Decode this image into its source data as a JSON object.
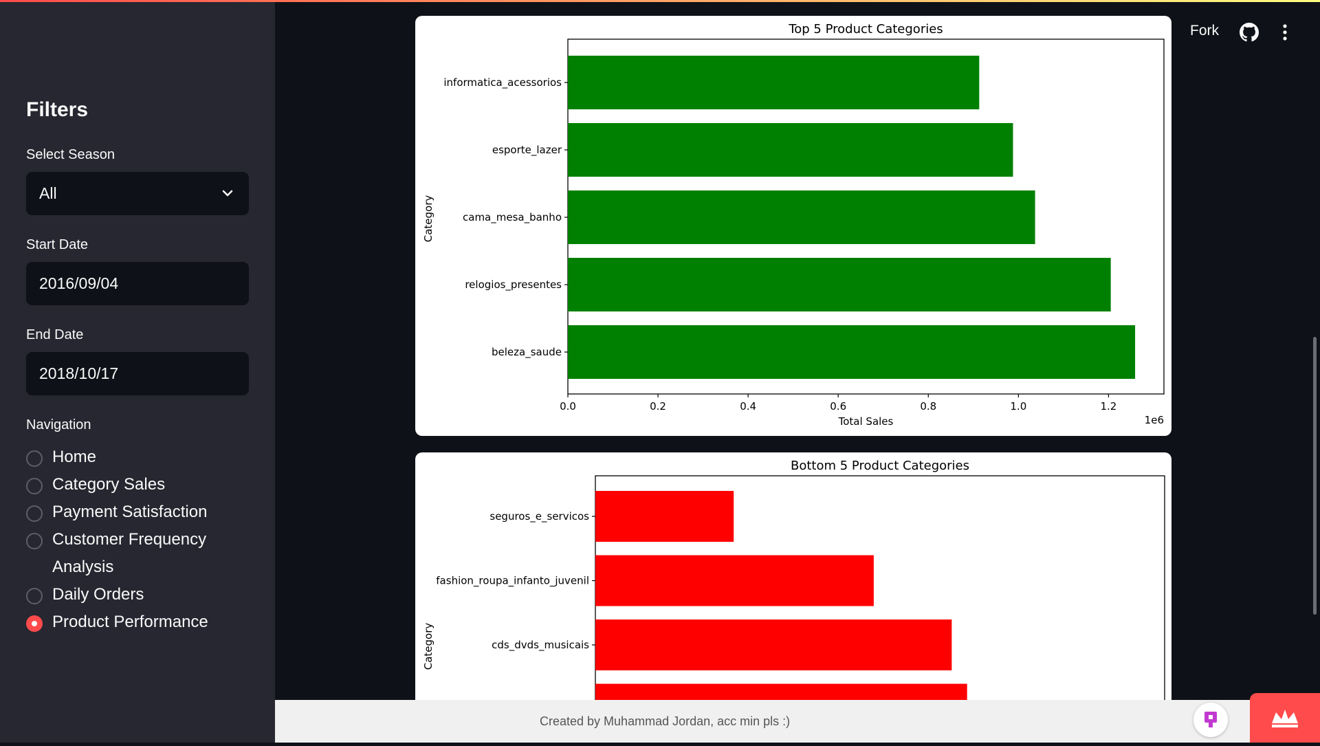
{
  "sidebar": {
    "title": "Filters",
    "season": {
      "label": "Select Season",
      "value": "All"
    },
    "start_date": {
      "label": "Start Date",
      "value": "2016/09/04"
    },
    "end_date": {
      "label": "End Date",
      "value": "2018/10/17"
    },
    "nav_label": "Navigation",
    "nav_items": [
      {
        "label": "Home",
        "selected": false
      },
      {
        "label": "Category Sales",
        "selected": false
      },
      {
        "label": "Payment Satisfaction",
        "selected": false
      },
      {
        "label": "Customer Frequency Analysis",
        "selected": false
      },
      {
        "label": "Daily Orders",
        "selected": false
      },
      {
        "label": "Product Performance",
        "selected": true
      }
    ]
  },
  "header": {
    "fork_label": "Fork",
    "github_icon": "github-icon",
    "menu_icon": "kebab-menu-icon"
  },
  "footer": {
    "text": "Created by Muhammad Jordan, acc min pls :)"
  },
  "colors": {
    "accent": "#ff4b4b",
    "top_bar": "#008000",
    "bottom_bar": "#ff0000",
    "sidebar_bg": "#262730",
    "app_bg": "#0e1117"
  },
  "chart_data": [
    {
      "type": "bar",
      "orientation": "horizontal",
      "title": "Top 5 Product Categories",
      "xlabel": "Total Sales",
      "ylabel": "Category",
      "x_scale_label": "1e6",
      "categories": [
        "informatica_acessorios",
        "esporte_lazer",
        "cama_mesa_banho",
        "relogios_presentes",
        "beleza_saude"
      ],
      "values": [
        0.913,
        0.988,
        1.037,
        1.205,
        1.259
      ],
      "xlim": [
        0,
        1.323
      ],
      "xticks": [
        "0.0",
        "0.2",
        "0.4",
        "0.6",
        "0.8",
        "1.0",
        "1.2"
      ],
      "color": "#008000"
    },
    {
      "type": "bar",
      "orientation": "horizontal",
      "title": "Bottom 5 Product Categories",
      "ylabel": "Category",
      "categories": [
        "seguros_e_servicos",
        "fashion_roupa_infanto_juvenil",
        "cds_dvds_musicais",
        ""
      ],
      "values": [
        0.243,
        0.489,
        0.626,
        0.653
      ],
      "xlim": [
        0,
        1
      ],
      "color": "#ff0000"
    }
  ]
}
